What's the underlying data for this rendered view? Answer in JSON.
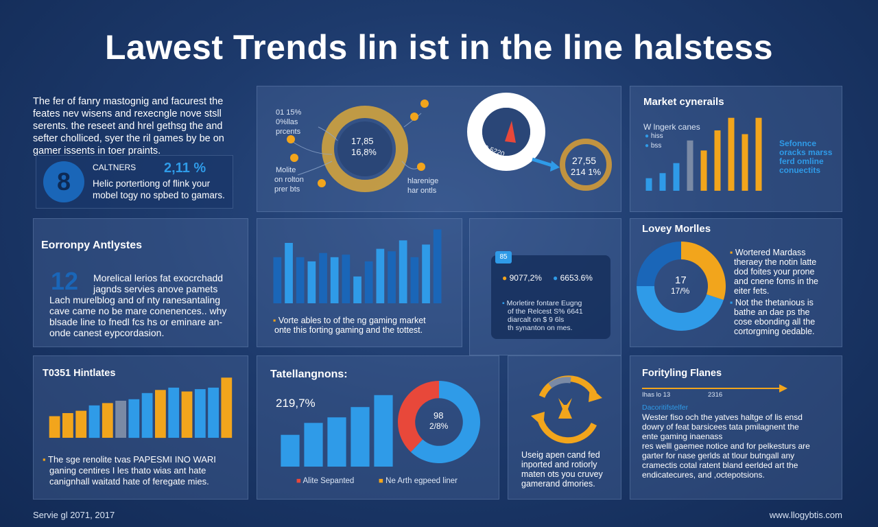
{
  "title": "Lawest Trends lin ist in the line halstess",
  "intro": {
    "lines": [
      "The fer of fanry mastognig and facurest the",
      "feates nev wisens and rexecngle nove stsll",
      "serents. the reseet and hrel gethsg the and",
      "sefter cholliced, syer the ril games by be on",
      "gamer issents in toer praints."
    ],
    "box_label": "CALTNERS",
    "box_value": "2,11 %",
    "box_text": [
      "Helic portertiong of flink your",
      "mobel togy no spbed to gamars."
    ],
    "badge": "8"
  },
  "network": {
    "center_lines": [
      "17,85",
      "16,8%"
    ],
    "label_tl": [
      "01 15%",
      "0%llas",
      "prcents"
    ],
    "label_bl": [
      "Molite",
      "on rolton",
      "prer bts"
    ],
    "label_br": [
      "hlarenige",
      "har ontls"
    ]
  },
  "gauge": {
    "needle_text": "0.5220",
    "ring_lines": [
      "27,55",
      "214 1%"
    ]
  },
  "market": {
    "title": "Market cynerails",
    "legend_title": "W lngerk canes",
    "legend_items": [
      "hiss",
      "bss"
    ],
    "side_text": [
      "Sefonnce",
      "oracks marss",
      "ferd omline",
      "conuectits"
    ],
    "bar_colors": [
      "#2f9be8",
      "#2f9be8",
      "#2f9be8",
      "#7a8aa5",
      "#f2a51c",
      "#f2a51c",
      "#f2a51c",
      "#f2a51c",
      "#f2a51c"
    ]
  },
  "economy": {
    "title": "Eorronpy Antlystes",
    "big_number": "12",
    "lines": [
      "Morelical lerios fat exocrchadd",
      "jagnds servies anove pamets",
      "Lach murelblog and of nty ranesantaling",
      "cave came no be mare conenences.. why",
      "blsade line to fnedl fcs hs or eminare an-",
      "onde canest eypcordasion."
    ]
  },
  "center_bars": {
    "caption": [
      "Vorte ables to of the ng gaming market",
      "onte this forting gaming and the tottest."
    ]
  },
  "stats": {
    "badge": "85",
    "values": [
      "9077,2%",
      "6653.6%"
    ],
    "lines": [
      "Morletire fontare Eugng",
      "of the Relcest S% 6641",
      "diarcalt on $ 9 6ls",
      "th synanton on mes."
    ]
  },
  "lovey": {
    "title": "Lovey Morlles",
    "center_lines": [
      "17",
      "17/%"
    ],
    "text1": [
      "Wortered Mardass",
      "theraey the notin latte",
      "dod foites your prone",
      "and cnene foms in the",
      "eiter fets."
    ],
    "text2": [
      "Not the thetanious is",
      "bathe an dae ps the",
      "cose ebonding all the",
      "cortorgming oedable."
    ]
  },
  "t0351": {
    "title": "T0351 Hintlates",
    "lines": [
      "The sge renolite tvas PAPESMI INO WARI",
      "ganing centires I les thato wias ant hate",
      "canignhall waitatd hate of feregate mies."
    ]
  },
  "tatell": {
    "title": "Tatellangnons:",
    "value": "219,7%",
    "donut_lines": [
      "98",
      "2/8%"
    ],
    "legend": [
      "Alite Sepanted",
      "Ne Arth egpeed liner"
    ]
  },
  "cycle": {
    "lines": [
      "Useig apen cand fed",
      "inported and rotiorly",
      "maten ots you cruvey",
      "gamerand dmories."
    ]
  },
  "fortifying": {
    "title": "Forityling Flanes",
    "timeline_labels": [
      "Ihas lo 13",
      "2316"
    ],
    "subtitle": "Dacoritifstelfer",
    "lines": [
      "Wester fiso och the yatves haltge of lis ensd",
      "dowry of feat barsicees tata pmilagnent the",
      "ente gaming inaenass",
      "res welll gaemee notice and for pelkesturs are",
      "garter for nase gerlds at tlour butngall any",
      "cramectis cotal ratent bland eerlded art the",
      "endicatecures, and ,octepotsions."
    ]
  },
  "footer": {
    "left": "Servie gl 2071, 2017",
    "right": "www.llogybtis.com"
  },
  "colors": {
    "blue": "#2f9be8",
    "dark_blue": "#1a66b8",
    "yellow": "#f2a51c",
    "red": "#e8483a",
    "gray": "#7a8aa5"
  },
  "chart_data": [
    {
      "type": "bar",
      "name_ref": "market",
      "values": [
        10,
        14,
        22,
        40,
        32,
        48,
        58,
        45,
        58
      ]
    },
    {
      "type": "bar",
      "name_ref": "center_bars",
      "values": [
        55,
        72,
        55,
        50,
        60,
        55,
        58,
        32,
        50,
        65,
        62,
        75,
        55,
        70,
        88
      ]
    },
    {
      "type": "bar",
      "name_ref": "t0351",
      "values": [
        28,
        32,
        35,
        42,
        45,
        48,
        50,
        58,
        62,
        65,
        60,
        63,
        65,
        78
      ]
    },
    {
      "type": "bar",
      "name_ref": "tatell",
      "values": [
        40,
        55,
        62,
        75,
        90
      ]
    },
    {
      "type": "pie",
      "name_ref": "lovey",
      "values": [
        30,
        45,
        25
      ],
      "colors": [
        "#f2a51c",
        "#2f9be8",
        "#1a66b8"
      ]
    },
    {
      "type": "pie",
      "name_ref": "tatell_donut",
      "values": [
        62,
        38
      ],
      "colors": [
        "#2f9be8",
        "#e8483a"
      ]
    }
  ]
}
